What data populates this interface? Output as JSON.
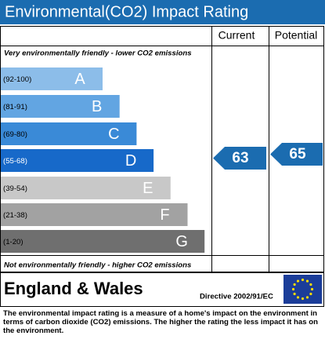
{
  "title": "Environmental(CO2) Impact Rating",
  "headers": {
    "current": "Current",
    "potential": "Potential"
  },
  "top_note": "Very environmentally friendly - lower CO2 emissions",
  "bottom_note": "Not environmentally friendly - higher CO2 emissions",
  "bands": [
    {
      "range": "(92-100)",
      "letter": "A"
    },
    {
      "range": "(81-91)",
      "letter": "B"
    },
    {
      "range": "(69-80)",
      "letter": "C"
    },
    {
      "range": "(55-68)",
      "letter": "D"
    },
    {
      "range": "(39-54)",
      "letter": "E"
    },
    {
      "range": "(21-38)",
      "letter": "F"
    },
    {
      "range": "(1-20)",
      "letter": "G"
    }
  ],
  "current": "63",
  "potential": "65",
  "footer": {
    "region": "England & Wales",
    "directive": "Directive 2002/91/EC"
  },
  "description": "The environmental impact rating is a measure of a home's impact on the environment in terms of carbon dioxide (CO2) emissions. The higher the rating the less impact it has on the environment."
}
